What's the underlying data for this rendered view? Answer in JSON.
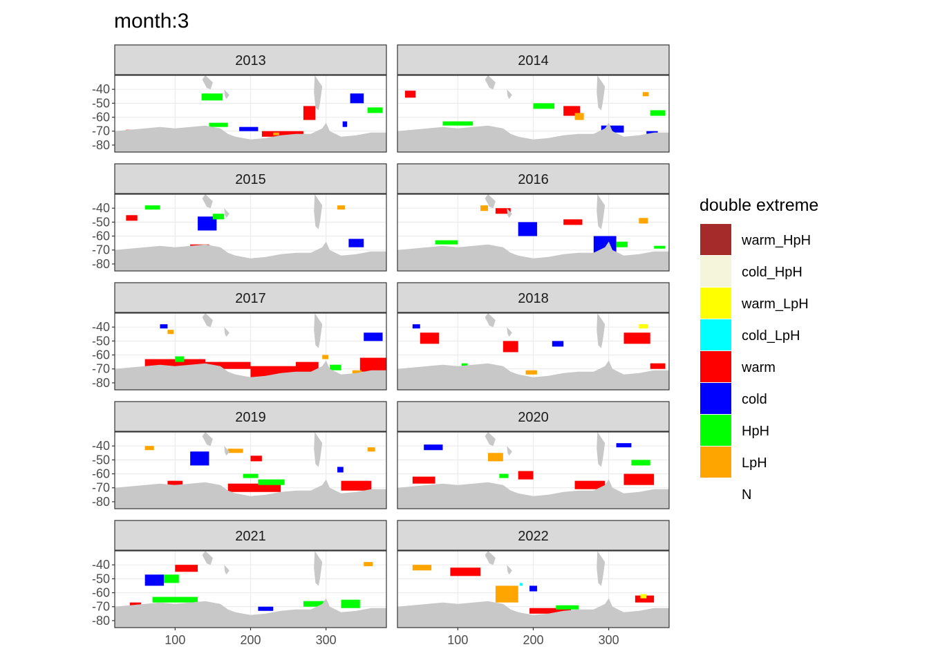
{
  "chart_data": {
    "type": "heatmap",
    "title": "month:3",
    "xlabel": "",
    "ylabel": "",
    "xlim": [
      20,
      380
    ],
    "ylim": [
      -85,
      -30
    ],
    "x_ticks": [
      100,
      200,
      300
    ],
    "y_ticks": [
      -40,
      -50,
      -60,
      -70,
      -80
    ],
    "grid": true,
    "legend": {
      "title": "double extreme",
      "position": "right",
      "entries": [
        {
          "label": "warm_HpH",
          "color": "#A52A2A"
        },
        {
          "label": "cold_HpH",
          "color": "#F5F5DC"
        },
        {
          "label": "warm_LpH",
          "color": "#FFFF00"
        },
        {
          "label": "cold_LpH",
          "color": "#00FFFF"
        },
        {
          "label": "warm",
          "color": "#FF0000"
        },
        {
          "label": "cold",
          "color": "#0000FF"
        },
        {
          "label": "HpH",
          "color": "#00FF00"
        },
        {
          "label": "LpH",
          "color": "#FFA500"
        },
        {
          "label": "N",
          "color": "#FFFFFF"
        }
      ]
    },
    "colors": {
      "land": "#C8C8C8",
      "strip": "#D9D9D9",
      "grid": "#EBEBEB",
      "panel_border": "#333333"
    },
    "facets": [
      {
        "label": "2013",
        "patches": [
          {
            "cat": "warm",
            "x": 270,
            "y": -52,
            "w": 16,
            "h": 10
          },
          {
            "cat": "warm",
            "x": 215,
            "y": -70,
            "w": 55,
            "h": 4
          },
          {
            "cat": "warm",
            "x": 35,
            "y": -69,
            "w": 18,
            "h": 3
          },
          {
            "cat": "cold",
            "x": 332,
            "y": -43,
            "w": 18,
            "h": 7
          },
          {
            "cat": "cold",
            "x": 185,
            "y": -67,
            "w": 25,
            "h": 3
          },
          {
            "cat": "cold",
            "x": 322,
            "y": -63,
            "w": 6,
            "h": 4
          },
          {
            "cat": "HpH",
            "x": 135,
            "y": -43,
            "w": 28,
            "h": 5
          },
          {
            "cat": "HpH",
            "x": 355,
            "y": -53,
            "w": 20,
            "h": 4
          },
          {
            "cat": "HpH",
            "x": 145,
            "y": -64,
            "w": 25,
            "h": 3
          },
          {
            "cat": "LpH",
            "x": 230,
            "y": -71,
            "w": 8,
            "h": 2
          }
        ]
      },
      {
        "label": "2014",
        "patches": [
          {
            "cat": "warm",
            "x": 240,
            "y": -52,
            "w": 22,
            "h": 7
          },
          {
            "cat": "warm",
            "x": 30,
            "y": -41,
            "w": 14,
            "h": 5
          },
          {
            "cat": "cold",
            "x": 290,
            "y": -66,
            "w": 30,
            "h": 5
          },
          {
            "cat": "cold",
            "x": 350,
            "y": -70,
            "w": 15,
            "h": 2
          },
          {
            "cat": "HpH",
            "x": 200,
            "y": -50,
            "w": 28,
            "h": 4
          },
          {
            "cat": "HpH",
            "x": 355,
            "y": -55,
            "w": 20,
            "h": 4
          },
          {
            "cat": "HpH",
            "x": 80,
            "y": -63,
            "w": 40,
            "h": 3
          },
          {
            "cat": "LpH",
            "x": 255,
            "y": -57,
            "w": 12,
            "h": 5
          },
          {
            "cat": "LpH",
            "x": 345,
            "y": -42,
            "w": 8,
            "h": 3
          }
        ]
      },
      {
        "label": "2015",
        "patches": [
          {
            "cat": "cold",
            "x": 130,
            "y": -46,
            "w": 25,
            "h": 10
          },
          {
            "cat": "cold",
            "x": 330,
            "y": -62,
            "w": 20,
            "h": 6
          },
          {
            "cat": "warm",
            "x": 120,
            "y": -66,
            "w": 25,
            "h": 3
          },
          {
            "cat": "warm",
            "x": 35,
            "y": -45,
            "w": 15,
            "h": 4
          },
          {
            "cat": "HpH",
            "x": 150,
            "y": -44,
            "w": 15,
            "h": 4
          },
          {
            "cat": "HpH",
            "x": 60,
            "y": -38,
            "w": 20,
            "h": 3
          },
          {
            "cat": "LpH",
            "x": 315,
            "y": -38,
            "w": 10,
            "h": 3
          }
        ]
      },
      {
        "label": "2016",
        "patches": [
          {
            "cat": "cold",
            "x": 180,
            "y": -50,
            "w": 25,
            "h": 10
          },
          {
            "cat": "cold",
            "x": 280,
            "y": -60,
            "w": 30,
            "h": 12
          },
          {
            "cat": "warm",
            "x": 240,
            "y": -48,
            "w": 25,
            "h": 4
          },
          {
            "cat": "warm",
            "x": 150,
            "y": -40,
            "w": 20,
            "h": 4
          },
          {
            "cat": "LpH",
            "x": 130,
            "y": -38,
            "w": 10,
            "h": 4
          },
          {
            "cat": "LpH",
            "x": 340,
            "y": -47,
            "w": 12,
            "h": 4
          },
          {
            "cat": "HpH",
            "x": 70,
            "y": -63,
            "w": 30,
            "h": 3
          },
          {
            "cat": "HpH",
            "x": 310,
            "y": -64,
            "w": 15,
            "h": 4
          },
          {
            "cat": "HpH",
            "x": 360,
            "y": -67,
            "w": 15,
            "h": 2
          }
        ]
      },
      {
        "label": "2017",
        "patches": [
          {
            "cat": "warm",
            "x": 60,
            "y": -63,
            "w": 80,
            "h": 8
          },
          {
            "cat": "warm",
            "x": 140,
            "y": -65,
            "w": 60,
            "h": 5
          },
          {
            "cat": "warm",
            "x": 200,
            "y": -68,
            "w": 60,
            "h": 8
          },
          {
            "cat": "warm",
            "x": 260,
            "y": -65,
            "w": 30,
            "h": 8
          },
          {
            "cat": "warm",
            "x": 345,
            "y": -62,
            "w": 35,
            "h": 10
          },
          {
            "cat": "HpH",
            "x": 100,
            "y": -61,
            "w": 12,
            "h": 4
          },
          {
            "cat": "HpH",
            "x": 305,
            "y": -67,
            "w": 15,
            "h": 4
          },
          {
            "cat": "LpH",
            "x": 295,
            "y": -60,
            "w": 8,
            "h": 3
          },
          {
            "cat": "LpH",
            "x": 335,
            "y": -71,
            "w": 12,
            "h": 3
          },
          {
            "cat": "cold",
            "x": 350,
            "y": -44,
            "w": 25,
            "h": 6
          },
          {
            "cat": "cold",
            "x": 80,
            "y": -38,
            "w": 10,
            "h": 3
          },
          {
            "cat": "LpH",
            "x": 90,
            "y": -42,
            "w": 8,
            "h": 3
          }
        ]
      },
      {
        "label": "2018",
        "patches": [
          {
            "cat": "warm",
            "x": 160,
            "y": -50,
            "w": 20,
            "h": 8
          },
          {
            "cat": "warm",
            "x": 320,
            "y": -44,
            "w": 35,
            "h": 8
          },
          {
            "cat": "warm",
            "x": 50,
            "y": -44,
            "w": 25,
            "h": 8
          },
          {
            "cat": "warm",
            "x": 355,
            "y": -66,
            "w": 20,
            "h": 4
          },
          {
            "cat": "warm_LpH",
            "x": 340,
            "y": -38,
            "w": 12,
            "h": 3
          },
          {
            "cat": "cold",
            "x": 225,
            "y": -50,
            "w": 15,
            "h": 4
          },
          {
            "cat": "cold",
            "x": 40,
            "y": -38,
            "w": 10,
            "h": 3
          },
          {
            "cat": "LpH",
            "x": 190,
            "y": -71,
            "w": 15,
            "h": 3
          },
          {
            "cat": "HpH",
            "x": 105,
            "y": -66,
            "w": 8,
            "h": 2
          }
        ]
      },
      {
        "label": "2019",
        "patches": [
          {
            "cat": "cold",
            "x": 120,
            "y": -44,
            "w": 25,
            "h": 10
          },
          {
            "cat": "cold",
            "x": 315,
            "y": -55,
            "w": 8,
            "h": 4
          },
          {
            "cat": "warm",
            "x": 170,
            "y": -67,
            "w": 70,
            "h": 6
          },
          {
            "cat": "warm",
            "x": 320,
            "y": -65,
            "w": 40,
            "h": 7
          },
          {
            "cat": "warm",
            "x": 90,
            "y": -65,
            "w": 20,
            "h": 3
          },
          {
            "cat": "warm",
            "x": 200,
            "y": -47,
            "w": 15,
            "h": 4
          },
          {
            "cat": "HpH",
            "x": 210,
            "y": -64,
            "w": 35,
            "h": 4
          },
          {
            "cat": "HpH",
            "x": 190,
            "y": -60,
            "w": 20,
            "h": 3
          },
          {
            "cat": "LpH",
            "x": 170,
            "y": -42,
            "w": 20,
            "h": 3
          },
          {
            "cat": "LpH",
            "x": 60,
            "y": -40,
            "w": 12,
            "h": 3
          },
          {
            "cat": "LpH",
            "x": 355,
            "y": -41,
            "w": 10,
            "h": 3
          }
        ]
      },
      {
        "label": "2020",
        "patches": [
          {
            "cat": "warm",
            "x": 40,
            "y": -62,
            "w": 30,
            "h": 5
          },
          {
            "cat": "warm",
            "x": 255,
            "y": -65,
            "w": 40,
            "h": 6
          },
          {
            "cat": "warm",
            "x": 320,
            "y": -60,
            "w": 40,
            "h": 8
          },
          {
            "cat": "warm",
            "x": 180,
            "y": -58,
            "w": 20,
            "h": 6
          },
          {
            "cat": "cold",
            "x": 55,
            "y": -39,
            "w": 25,
            "h": 4
          },
          {
            "cat": "cold",
            "x": 310,
            "y": -38,
            "w": 20,
            "h": 3
          },
          {
            "cat": "LpH",
            "x": 140,
            "y": -45,
            "w": 20,
            "h": 6
          },
          {
            "cat": "HpH",
            "x": 330,
            "y": -50,
            "w": 25,
            "h": 4
          },
          {
            "cat": "HpH",
            "x": 155,
            "y": -60,
            "w": 12,
            "h": 3
          }
        ]
      },
      {
        "label": "2021",
        "patches": [
          {
            "cat": "HpH",
            "x": 70,
            "y": -63,
            "w": 60,
            "h": 4
          },
          {
            "cat": "HpH",
            "x": 85,
            "y": -47,
            "w": 20,
            "h": 6
          },
          {
            "cat": "HpH",
            "x": 270,
            "y": -66,
            "w": 30,
            "h": 4
          },
          {
            "cat": "HpH",
            "x": 320,
            "y": -65,
            "w": 25,
            "h": 6
          },
          {
            "cat": "warm",
            "x": 40,
            "y": -67,
            "w": 15,
            "h": 4
          },
          {
            "cat": "warm",
            "x": 100,
            "y": -40,
            "w": 30,
            "h": 5
          },
          {
            "cat": "cold",
            "x": 60,
            "y": -47,
            "w": 25,
            "h": 8
          },
          {
            "cat": "cold",
            "x": 210,
            "y": -70,
            "w": 20,
            "h": 3
          },
          {
            "cat": "LpH",
            "x": 350,
            "y": -38,
            "w": 12,
            "h": 3
          }
        ]
      },
      {
        "label": "2022",
        "patches": [
          {
            "cat": "LpH",
            "x": 150,
            "y": -55,
            "w": 30,
            "h": 12
          },
          {
            "cat": "LpH",
            "x": 40,
            "y": -40,
            "w": 25,
            "h": 4
          },
          {
            "cat": "warm",
            "x": 195,
            "y": -71,
            "w": 55,
            "h": 4
          },
          {
            "cat": "warm",
            "x": 335,
            "y": -62,
            "w": 25,
            "h": 5
          },
          {
            "cat": "warm",
            "x": 90,
            "y": -42,
            "w": 40,
            "h": 6
          },
          {
            "cat": "warm_LpH",
            "x": 342,
            "y": -61,
            "w": 8,
            "h": 3
          },
          {
            "cat": "HpH",
            "x": 230,
            "y": -69,
            "w": 30,
            "h": 3
          },
          {
            "cat": "cold",
            "x": 195,
            "y": -55,
            "w": 10,
            "h": 4
          },
          {
            "cat": "cold_LpH",
            "x": 182,
            "y": -53,
            "w": 4,
            "h": 2
          }
        ]
      }
    ]
  }
}
